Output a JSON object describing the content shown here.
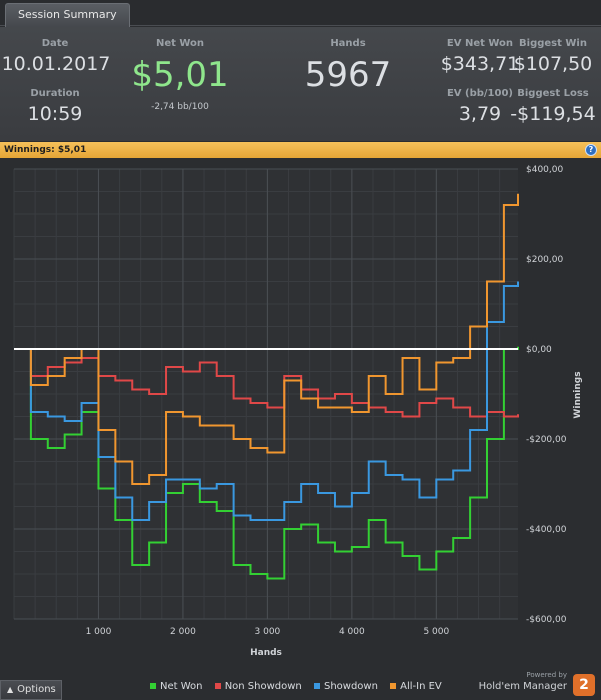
{
  "tab": {
    "label": "Session Summary"
  },
  "summary": {
    "date_label": "Date",
    "date": "10.01.2017",
    "duration_label": "Duration",
    "duration": "10:59",
    "net_won_label": "Net Won",
    "net_won": "$5,01",
    "bb100": "-2,74 bb/100",
    "hands_label": "Hands",
    "hands": "5967",
    "ev_net_won_label": "EV Net Won",
    "ev_net_won": "$343,71",
    "biggest_win_label": "Biggest Win",
    "biggest_win": "$107,50",
    "ev_bb_label": "EV (bb/100)",
    "ev_bb": "3,79",
    "biggest_loss_label": "Biggest Loss",
    "biggest_loss": "-$119,54"
  },
  "winnings_bar": {
    "label": "Winnings:",
    "value": "$5,01"
  },
  "chart_data": {
    "type": "line",
    "xlabel": "Hands",
    "ylabel": "Winnings",
    "xlim": [
      0,
      5967
    ],
    "ylim": [
      -600,
      400
    ],
    "x_ticks": [
      1000,
      2000,
      3000,
      4000,
      5000
    ],
    "x_tick_labels": [
      "1 000",
      "2 000",
      "3 000",
      "4 000",
      "5 000"
    ],
    "y_ticks": [
      400,
      200,
      0,
      -200,
      -400,
      -600
    ],
    "y_tick_labels": [
      "$400,00",
      "$200,00",
      "$0,00",
      "-$200,00",
      "-$400,00",
      "-$600,00"
    ],
    "grid": true,
    "legend_position": "bottom",
    "x": [
      0,
      200,
      400,
      600,
      800,
      1000,
      1200,
      1400,
      1600,
      1800,
      2000,
      2200,
      2400,
      2600,
      2800,
      3000,
      3200,
      3400,
      3600,
      3800,
      4000,
      4200,
      4400,
      4600,
      4800,
      5000,
      5200,
      5400,
      5600,
      5800,
      5967
    ],
    "series": [
      {
        "name": "Net Won",
        "color": "#33d033",
        "values": [
          0,
          -200,
          -220,
          -190,
          -140,
          -310,
          -380,
          -480,
          -430,
          -320,
          -300,
          -340,
          -360,
          -480,
          -500,
          -510,
          -400,
          -390,
          -430,
          -450,
          -440,
          -380,
          -430,
          -460,
          -490,
          -450,
          -420,
          -330,
          -200,
          0,
          5
        ]
      },
      {
        "name": "Non Showdown",
        "color": "#e04848",
        "values": [
          0,
          -60,
          -40,
          -30,
          -20,
          -60,
          -70,
          -90,
          -100,
          -40,
          -50,
          -30,
          -60,
          -110,
          -120,
          -130,
          -60,
          -90,
          -110,
          -100,
          -120,
          -130,
          -140,
          -150,
          -120,
          -110,
          -130,
          -150,
          -140,
          -150,
          -145
        ]
      },
      {
        "name": "Showdown",
        "color": "#3a98e0",
        "values": [
          0,
          -140,
          -150,
          -160,
          -120,
          -240,
          -330,
          -380,
          -340,
          -290,
          -290,
          -310,
          -300,
          -370,
          -380,
          -380,
          -340,
          -300,
          -320,
          -350,
          -320,
          -250,
          -280,
          -290,
          -330,
          -290,
          -270,
          -180,
          60,
          140,
          150
        ]
      },
      {
        "name": "All-In EV",
        "color": "#f0962f",
        "values": [
          0,
          -80,
          -60,
          -20,
          0,
          -180,
          -250,
          -300,
          -280,
          -140,
          -150,
          -170,
          -170,
          -200,
          -220,
          -230,
          -70,
          -110,
          -130,
          -130,
          -140,
          -60,
          -100,
          -20,
          -90,
          -30,
          -20,
          50,
          150,
          320,
          345
        ]
      }
    ]
  },
  "legend": {
    "net_won": "Net Won",
    "non_showdown": "Non Showdown",
    "showdown": "Showdown",
    "all_in_ev": "All-In EV"
  },
  "footer": {
    "options_label": "Options",
    "powered_by": "Powered by",
    "brand": "Hold'em Manager",
    "brand_badge": "2"
  }
}
